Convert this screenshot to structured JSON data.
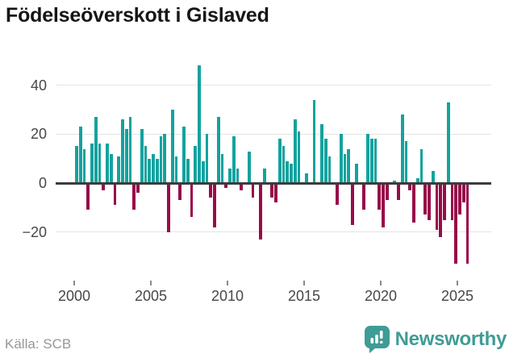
{
  "header": {
    "title": "Födelseöverskott i Gislaved"
  },
  "footer": {
    "source": "Källa: SCB",
    "brand": "Newsworthy"
  },
  "colors": {
    "positive_bar": "#14a29e",
    "negative_bar": "#970c4a",
    "brand_teal": "#3f9c95",
    "axis_line": "#3c3c3c",
    "gridline": "#e4e4e4"
  },
  "chart_data": {
    "type": "bar",
    "title": "Födelseöverskott i Gislaved",
    "xlabel": "",
    "ylabel": "",
    "period": "quarterly",
    "ylim": [
      -40,
      50
    ],
    "grid": "horizontal",
    "legend": "none",
    "y_ticks": [
      {
        "value": 40,
        "label": "40"
      },
      {
        "value": 20,
        "label": "20"
      },
      {
        "value": 0,
        "label": "0"
      },
      {
        "value": -20,
        "label": "−20"
      }
    ],
    "x_ticks": [
      {
        "year": 2000,
        "label": "2000"
      },
      {
        "year": 2005,
        "label": "2005"
      },
      {
        "year": 2010,
        "label": "2010"
      },
      {
        "year": 2015,
        "label": "2015"
      },
      {
        "year": 2020,
        "label": "2020"
      },
      {
        "year": 2025,
        "label": "2025"
      }
    ],
    "series": [
      {
        "year": 2000,
        "quarters": [
          15,
          23,
          14,
          -11
        ]
      },
      {
        "year": 2001,
        "quarters": [
          16,
          27,
          16,
          -3
        ]
      },
      {
        "year": 2002,
        "quarters": [
          16,
          12,
          -9,
          11
        ]
      },
      {
        "year": 2003,
        "quarters": [
          26,
          22,
          27,
          -11
        ]
      },
      {
        "year": 2004,
        "quarters": [
          -4,
          22,
          15,
          10
        ]
      },
      {
        "year": 2005,
        "quarters": [
          12,
          10,
          19,
          20
        ]
      },
      {
        "year": 2006,
        "quarters": [
          -20,
          30,
          11,
          -7
        ]
      },
      {
        "year": 2007,
        "quarters": [
          23,
          10,
          -14,
          15
        ]
      },
      {
        "year": 2008,
        "quarters": [
          48,
          9,
          20,
          -6
        ]
      },
      {
        "year": 2009,
        "quarters": [
          -18,
          27,
          12,
          -2
        ]
      },
      {
        "year": 2010,
        "quarters": [
          6,
          19,
          6,
          -3
        ]
      },
      {
        "year": 2011,
        "quarters": [
          0,
          13,
          -6,
          0
        ]
      },
      {
        "year": 2012,
        "quarters": [
          -23,
          6,
          0,
          -6
        ]
      },
      {
        "year": 2013,
        "quarters": [
          -8,
          18,
          15,
          9
        ]
      },
      {
        "year": 2014,
        "quarters": [
          8,
          26,
          21,
          0
        ]
      },
      {
        "year": 2015,
        "quarters": [
          4,
          0,
          34,
          0
        ]
      },
      {
        "year": 2016,
        "quarters": [
          24,
          18,
          11,
          0
        ]
      },
      {
        "year": 2017,
        "quarters": [
          -9,
          20,
          12,
          14
        ]
      },
      {
        "year": 2018,
        "quarters": [
          -17,
          8,
          0,
          -11
        ]
      },
      {
        "year": 2019,
        "quarters": [
          20,
          18,
          18,
          -11
        ]
      },
      {
        "year": 2020,
        "quarters": [
          -18,
          -7,
          0,
          1
        ]
      },
      {
        "year": 2021,
        "quarters": [
          -7,
          28,
          17,
          -3
        ]
      },
      {
        "year": 2022,
        "quarters": [
          -16,
          2,
          14,
          -13
        ]
      },
      {
        "year": 2023,
        "quarters": [
          -15,
          5,
          -19,
          -22
        ]
      },
      {
        "year": 2024,
        "quarters": [
          -15,
          33,
          -15,
          -33
        ]
      },
      {
        "year": 2025,
        "quarters": [
          -13,
          -8,
          -33,
          null
        ]
      }
    ]
  }
}
